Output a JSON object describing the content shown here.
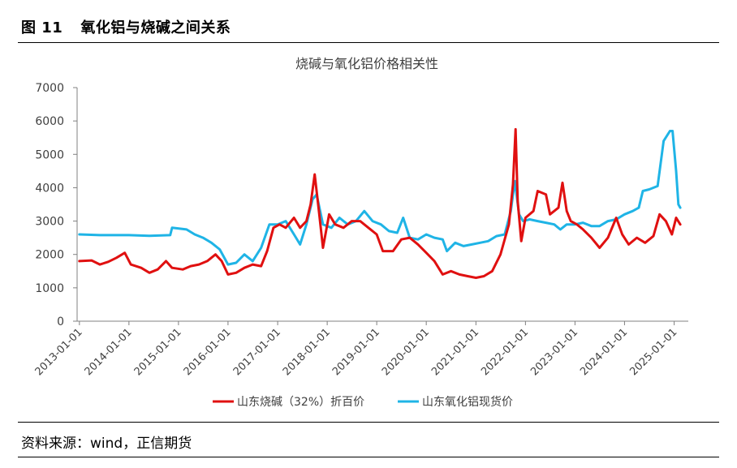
{
  "figure": {
    "number": "图 11",
    "caption": "氧化铝与烧碱之间关系",
    "source": "资料来源：wind，正信期货"
  },
  "chart_data": {
    "type": "line",
    "title": "烧碱与氧化铝价格相关性",
    "xlabel": "",
    "ylabel": "",
    "ylim": [
      0,
      7000
    ],
    "yticks": [
      0,
      1000,
      2000,
      3000,
      4000,
      5000,
      6000,
      7000
    ],
    "xlim": [
      "2012-12-15",
      "2025-04-15"
    ],
    "xticks": [
      "2013-01-01",
      "2014-01-01",
      "2015-01-01",
      "2016-01-01",
      "2017-01-01",
      "2018-01-01",
      "2019-01-01",
      "2020-01-01",
      "2021-01-01",
      "2022-01-01",
      "2023-01-01",
      "2024-01-01",
      "2025-01-01"
    ],
    "grid": false,
    "legend_position": "bottom",
    "series": [
      {
        "name": "山东烧碱（32%）折百价",
        "color": "#e01010",
        "points": [
          [
            "2013-01-01",
            1800
          ],
          [
            "2013-04-01",
            1820
          ],
          [
            "2013-06-01",
            1700
          ],
          [
            "2013-08-01",
            1780
          ],
          [
            "2013-10-01",
            1900
          ],
          [
            "2013-12-01",
            2050
          ],
          [
            "2014-01-15",
            1700
          ],
          [
            "2014-04-01",
            1600
          ],
          [
            "2014-06-01",
            1450
          ],
          [
            "2014-08-01",
            1550
          ],
          [
            "2014-10-01",
            1800
          ],
          [
            "2014-11-15",
            1600
          ],
          [
            "2015-02-01",
            1550
          ],
          [
            "2015-04-01",
            1650
          ],
          [
            "2015-06-01",
            1700
          ],
          [
            "2015-08-01",
            1800
          ],
          [
            "2015-10-01",
            2000
          ],
          [
            "2015-11-15",
            1800
          ],
          [
            "2016-01-01",
            1400
          ],
          [
            "2016-03-01",
            1450
          ],
          [
            "2016-05-01",
            1600
          ],
          [
            "2016-07-01",
            1700
          ],
          [
            "2016-09-01",
            1650
          ],
          [
            "2016-10-15",
            2100
          ],
          [
            "2016-12-01",
            2800
          ],
          [
            "2017-01-15",
            2900
          ],
          [
            "2017-03-01",
            2800
          ],
          [
            "2017-05-01",
            3100
          ],
          [
            "2017-06-15",
            2800
          ],
          [
            "2017-08-01",
            3000
          ],
          [
            "2017-09-01",
            3500
          ],
          [
            "2017-10-01",
            4400
          ],
          [
            "2017-11-01",
            3300
          ],
          [
            "2017-12-01",
            2200
          ],
          [
            "2018-01-15",
            3200
          ],
          [
            "2018-03-01",
            2900
          ],
          [
            "2018-05-01",
            2800
          ],
          [
            "2018-07-01",
            3000
          ],
          [
            "2018-09-01",
            3000
          ],
          [
            "2018-11-01",
            2800
          ],
          [
            "2019-01-01",
            2600
          ],
          [
            "2019-02-15",
            2100
          ],
          [
            "2019-05-01",
            2100
          ],
          [
            "2019-07-01",
            2450
          ],
          [
            "2019-09-01",
            2500
          ],
          [
            "2019-11-01",
            2300
          ],
          [
            "2020-01-01",
            2050
          ],
          [
            "2020-03-01",
            1800
          ],
          [
            "2020-05-01",
            1400
          ],
          [
            "2020-07-01",
            1500
          ],
          [
            "2020-09-01",
            1400
          ],
          [
            "2020-11-01",
            1350
          ],
          [
            "2021-01-01",
            1300
          ],
          [
            "2021-03-01",
            1350
          ],
          [
            "2021-05-01",
            1500
          ],
          [
            "2021-07-01",
            2000
          ],
          [
            "2021-09-01",
            2900
          ],
          [
            "2021-10-01",
            4100
          ],
          [
            "2021-10-20",
            5750
          ],
          [
            "2021-11-05",
            3600
          ],
          [
            "2021-12-01",
            2400
          ],
          [
            "2022-01-01",
            3100
          ],
          [
            "2022-03-01",
            3300
          ],
          [
            "2022-04-01",
            3900
          ],
          [
            "2022-06-01",
            3800
          ],
          [
            "2022-07-01",
            3200
          ],
          [
            "2022-09-01",
            3400
          ],
          [
            "2022-10-01",
            4150
          ],
          [
            "2022-11-01",
            3300
          ],
          [
            "2022-12-01",
            3000
          ],
          [
            "2023-01-15",
            2900
          ],
          [
            "2023-03-01",
            2750
          ],
          [
            "2023-05-01",
            2500
          ],
          [
            "2023-07-01",
            2200
          ],
          [
            "2023-09-01",
            2500
          ],
          [
            "2023-11-01",
            3100
          ],
          [
            "2023-12-15",
            2600
          ],
          [
            "2024-02-01",
            2300
          ],
          [
            "2024-04-01",
            2500
          ],
          [
            "2024-06-01",
            2350
          ],
          [
            "2024-08-01",
            2550
          ],
          [
            "2024-09-15",
            3200
          ],
          [
            "2024-11-01",
            3000
          ],
          [
            "2024-12-15",
            2600
          ],
          [
            "2025-01-15",
            3100
          ],
          [
            "2025-02-15",
            2900
          ]
        ]
      },
      {
        "name": "山东氧化铝现货价",
        "color": "#1fb4e6",
        "points": [
          [
            "2013-01-01",
            2600
          ],
          [
            "2013-06-01",
            2580
          ],
          [
            "2014-01-01",
            2580
          ],
          [
            "2014-06-01",
            2560
          ],
          [
            "2014-11-01",
            2580
          ],
          [
            "2014-11-15",
            2800
          ],
          [
            "2015-03-01",
            2750
          ],
          [
            "2015-05-01",
            2600
          ],
          [
            "2015-07-01",
            2500
          ],
          [
            "2015-09-01",
            2350
          ],
          [
            "2015-11-01",
            2150
          ],
          [
            "2016-01-01",
            1700
          ],
          [
            "2016-03-01",
            1750
          ],
          [
            "2016-05-01",
            2000
          ],
          [
            "2016-07-01",
            1800
          ],
          [
            "2016-09-01",
            2200
          ],
          [
            "2016-11-01",
            2900
          ],
          [
            "2017-01-01",
            2900
          ],
          [
            "2017-03-01",
            3000
          ],
          [
            "2017-05-01",
            2600
          ],
          [
            "2017-06-15",
            2300
          ],
          [
            "2017-08-01",
            2900
          ],
          [
            "2017-09-15",
            3650
          ],
          [
            "2017-10-15",
            3800
          ],
          [
            "2017-12-01",
            2900
          ],
          [
            "2018-02-01",
            2800
          ],
          [
            "2018-04-01",
            3100
          ],
          [
            "2018-06-01",
            2900
          ],
          [
            "2018-08-01",
            3000
          ],
          [
            "2018-10-01",
            3300
          ],
          [
            "2018-12-01",
            3000
          ],
          [
            "2019-02-01",
            2900
          ],
          [
            "2019-04-01",
            2700
          ],
          [
            "2019-06-01",
            2650
          ],
          [
            "2019-07-15",
            3100
          ],
          [
            "2019-09-01",
            2500
          ],
          [
            "2019-11-01",
            2450
          ],
          [
            "2020-01-01",
            2600
          ],
          [
            "2020-03-01",
            2500
          ],
          [
            "2020-05-01",
            2450
          ],
          [
            "2020-06-01",
            2100
          ],
          [
            "2020-08-01",
            2350
          ],
          [
            "2020-10-01",
            2250
          ],
          [
            "2020-12-01",
            2300
          ],
          [
            "2021-02-01",
            2350
          ],
          [
            "2021-04-01",
            2400
          ],
          [
            "2021-06-01",
            2550
          ],
          [
            "2021-08-01",
            2600
          ],
          [
            "2021-09-15",
            3300
          ],
          [
            "2021-10-15",
            4200
          ],
          [
            "2021-11-15",
            3200
          ],
          [
            "2021-12-15",
            3000
          ],
          [
            "2022-02-01",
            3050
          ],
          [
            "2022-04-01",
            3000
          ],
          [
            "2022-06-01",
            2950
          ],
          [
            "2022-08-01",
            2900
          ],
          [
            "2022-09-15",
            2750
          ],
          [
            "2022-11-01",
            2900
          ],
          [
            "2023-01-01",
            2900
          ],
          [
            "2023-03-01",
            2950
          ],
          [
            "2023-05-01",
            2850
          ],
          [
            "2023-07-01",
            2850
          ],
          [
            "2023-09-01",
            3000
          ],
          [
            "2023-11-01",
            3050
          ],
          [
            "2024-01-01",
            3200
          ],
          [
            "2024-03-01",
            3300
          ],
          [
            "2024-04-15",
            3400
          ],
          [
            "2024-05-15",
            3900
          ],
          [
            "2024-07-01",
            3950
          ],
          [
            "2024-09-01",
            4050
          ],
          [
            "2024-10-15",
            5400
          ],
          [
            "2024-12-01",
            5700
          ],
          [
            "2024-12-20",
            5700
          ],
          [
            "2025-01-15",
            4500
          ],
          [
            "2025-02-01",
            3500
          ],
          [
            "2025-02-15",
            3400
          ]
        ]
      }
    ]
  }
}
